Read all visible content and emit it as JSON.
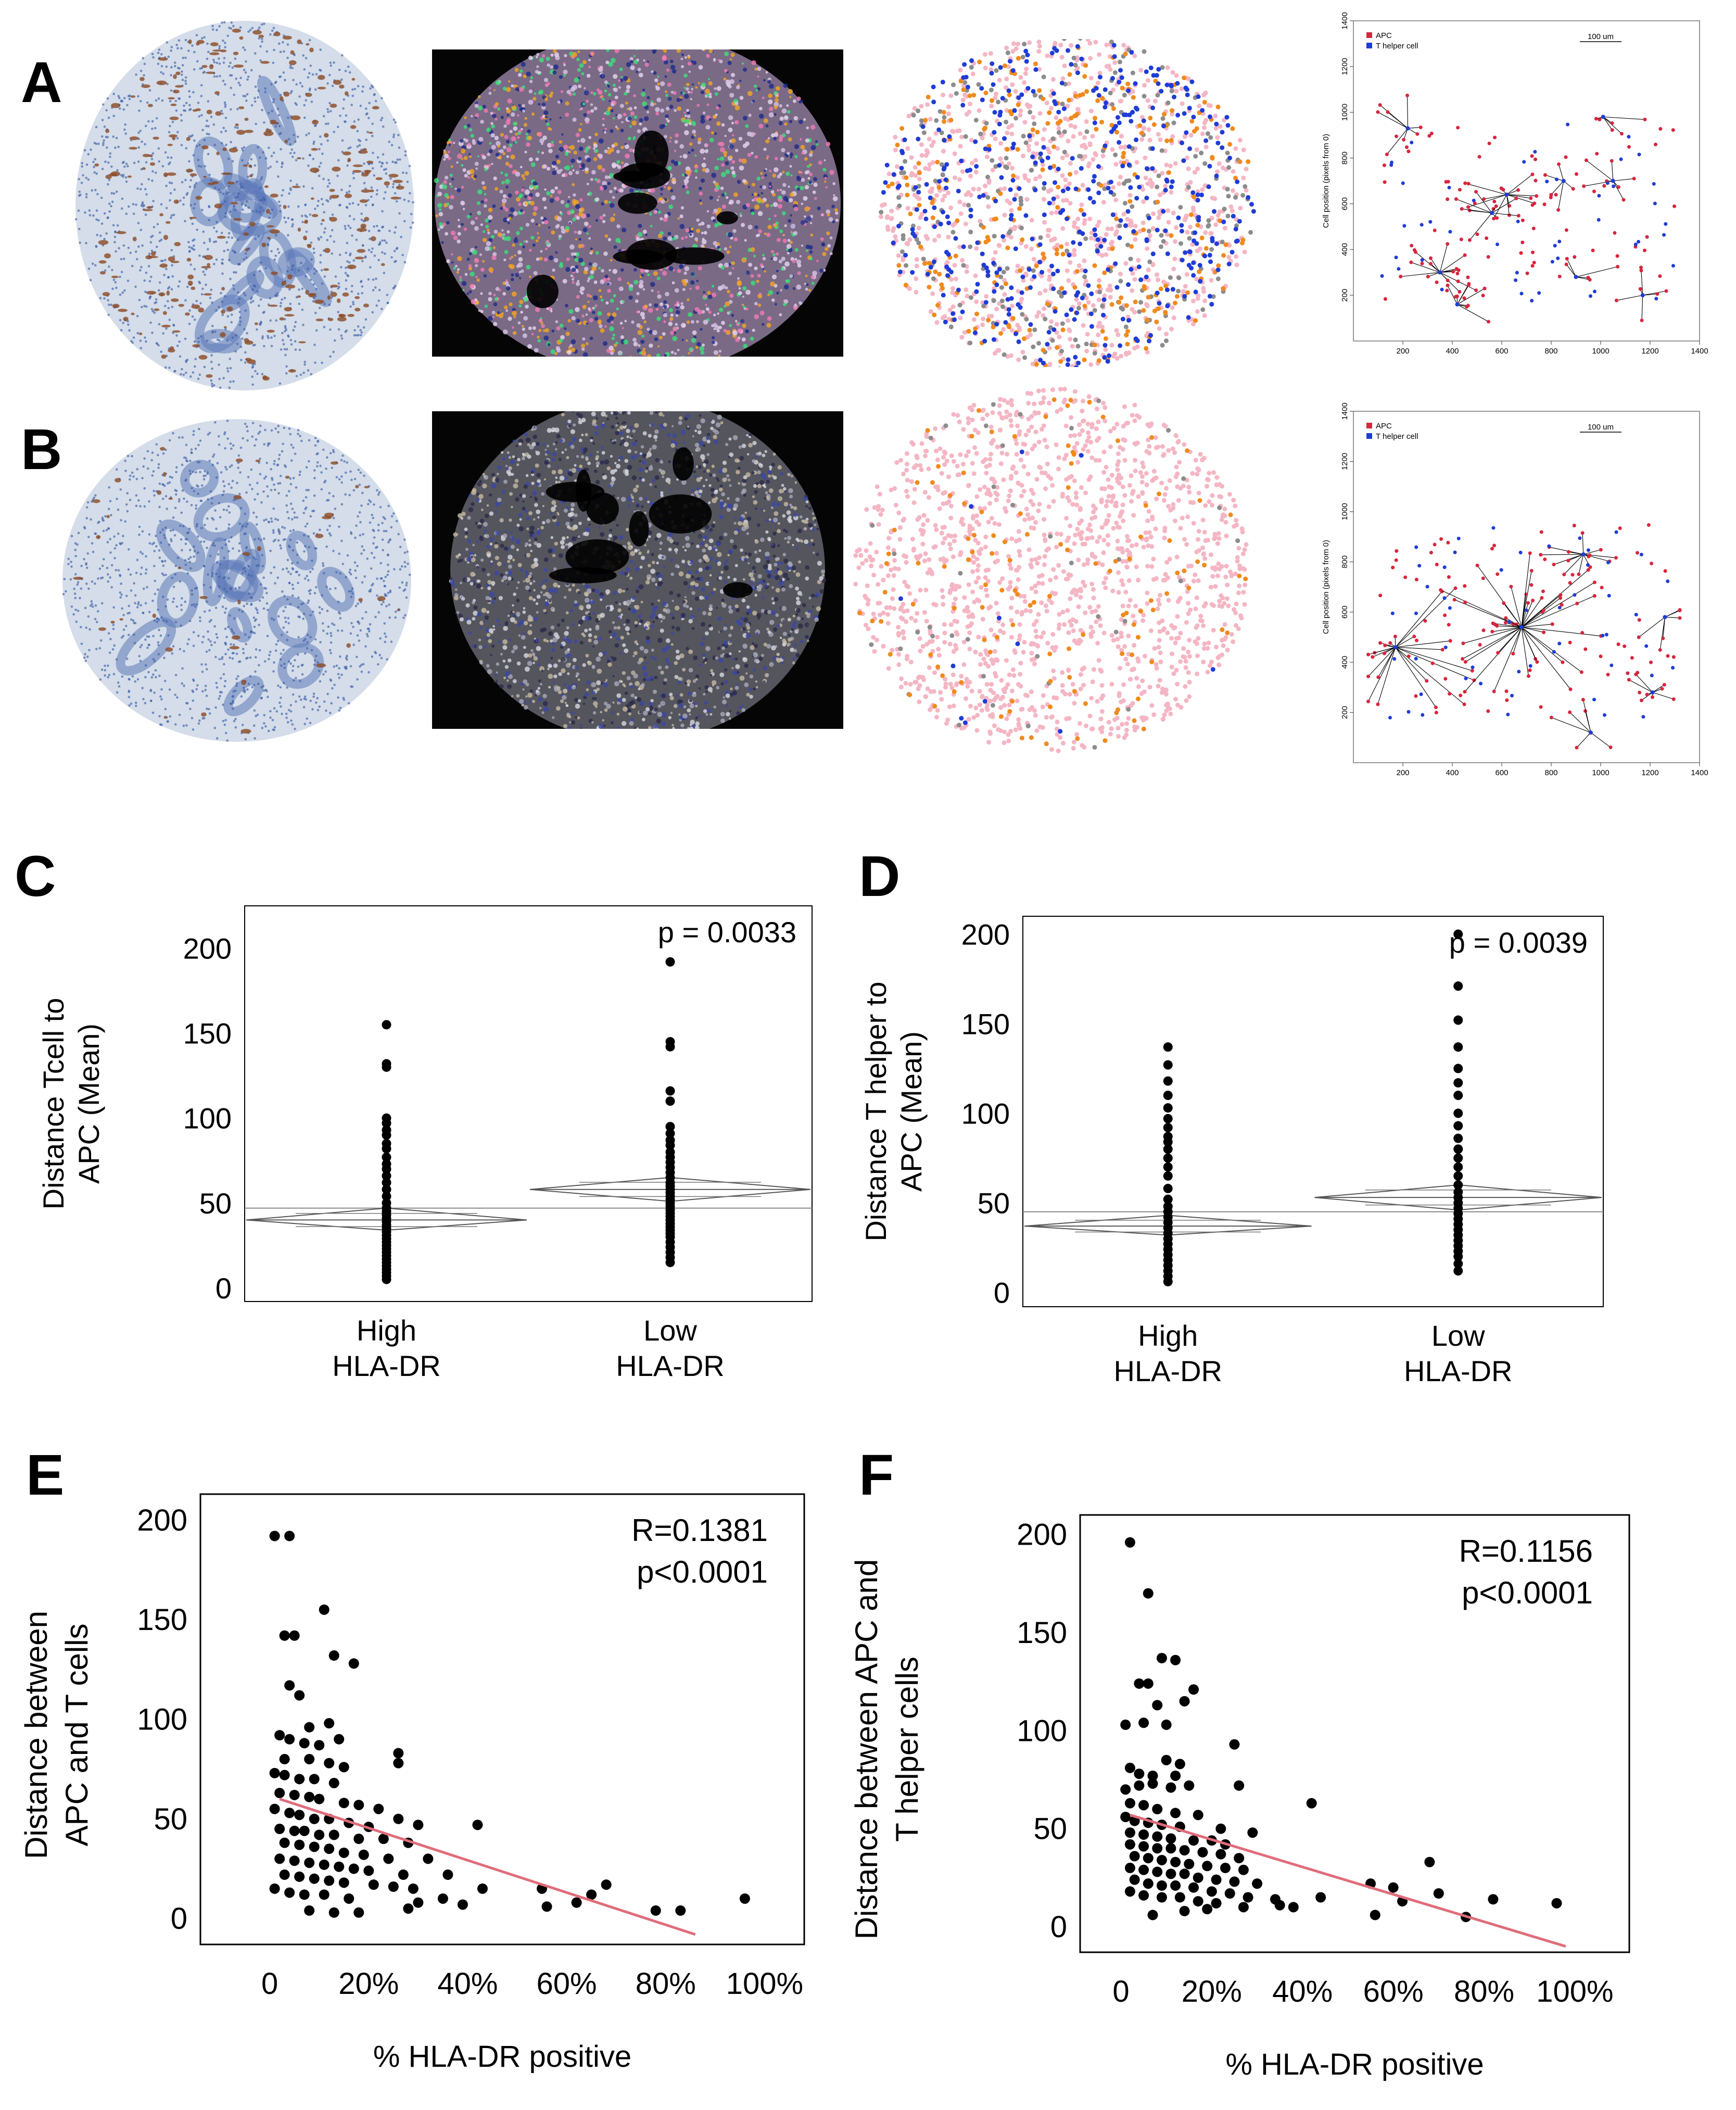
{
  "panel_letters": [
    "A",
    "B",
    "C",
    "D",
    "E",
    "F"
  ],
  "colors": {
    "ihc_background": "#d4dde9",
    "ihc_brown": "#8b4a24",
    "apc": "#d7263d",
    "t_helper": "#1f3cd6",
    "pink_cell": "#f4b6c4",
    "orange_cell": "#f08a1c",
    "gray_cell": "#8c8c8c",
    "regression_line": "#e06c7a"
  },
  "legend": {
    "apc": "APC",
    "t_helper": "T helper cell",
    "scale_bar": "100 um"
  },
  "chart_data": [
    {
      "id": "A4",
      "type": "scatter",
      "title": "",
      "xlabel": "",
      "ylabel": "Cell position (pixels from 0)",
      "xlim": [
        0,
        1400
      ],
      "ylim": [
        0,
        1400
      ],
      "xticks": [
        200,
        400,
        600,
        800,
        1000,
        1200,
        1400
      ],
      "yticks": [
        200,
        400,
        600,
        800,
        1000,
        1200,
        1400
      ],
      "hubs": [
        [
          220,
          930
        ],
        [
          1010,
          980
        ],
        [
          850,
          700
        ],
        [
          1050,
          700
        ],
        [
          620,
          640
        ],
        [
          350,
          300
        ],
        [
          560,
          560
        ],
        [
          1170,
          200
        ],
        [
          420,
          160
        ],
        [
          900,
          280
        ]
      ],
      "series": [
        {
          "name": "APC"
        },
        {
          "name": "T helper cell"
        }
      ]
    },
    {
      "id": "B4",
      "type": "scatter",
      "title": "",
      "xlabel": "",
      "ylabel": "Cell position (pixels from 0)",
      "xlim": [
        0,
        1400
      ],
      "ylim": [
        0,
        1400
      ],
      "xticks": [
        200,
        400,
        600,
        800,
        1000,
        1200,
        1400
      ],
      "yticks": [
        200,
        400,
        600,
        800,
        1000,
        1200,
        1400
      ],
      "hubs": [
        [
          170,
          460
        ],
        [
          680,
          540
        ],
        [
          930,
          830
        ],
        [
          1260,
          580
        ],
        [
          1210,
          280
        ],
        [
          960,
          120
        ]
      ],
      "series": [
        {
          "name": "APC"
        },
        {
          "name": "T helper cell"
        }
      ]
    },
    {
      "id": "C",
      "type": "scatter",
      "title": "",
      "xlabel": "",
      "ylabel": "Distance Tcell to APC (Mean)",
      "ylabel_lines": [
        "Distance Tcell to",
        "APC (Mean)"
      ],
      "ylim": [
        -8,
        225
      ],
      "yticks": [
        0,
        50,
        100,
        150,
        200
      ],
      "categories": [
        [
          "High",
          "HLA-DR"
        ],
        [
          "Low",
          "HLA-DR"
        ]
      ],
      "annotation": "p = 0.0033",
      "grand_mean": 47,
      "groups": [
        {
          "name": "High HLA-DR",
          "mean": 40,
          "ci": [
            34,
            47
          ],
          "values": [
            155,
            132,
            130,
            100,
            97,
            93,
            90,
            85,
            82,
            77,
            73,
            70,
            66,
            62,
            58,
            54,
            50,
            47,
            45,
            43,
            41,
            39,
            37,
            35,
            33,
            31,
            29,
            27,
            25,
            23,
            21,
            19,
            17,
            15,
            13,
            11,
            9,
            7,
            5
          ]
        },
        {
          "name": "Low HLA-DR",
          "mean": 58,
          "ci": [
            51,
            65
          ],
          "values": [
            192,
            145,
            142,
            116,
            110,
            95,
            91,
            87,
            84,
            80,
            77,
            74,
            71,
            68,
            65,
            62,
            60,
            58,
            56,
            54,
            52,
            50,
            48,
            46,
            44,
            42,
            40,
            38,
            36,
            34,
            32,
            30,
            27,
            24,
            21,
            18,
            15
          ]
        }
      ]
    },
    {
      "id": "D",
      "type": "scatter",
      "title": "",
      "xlabel": "",
      "ylabel": "Distance T helper to APC (Mean)",
      "ylabel_lines": [
        "Distance T helper to",
        "APC (Mean)"
      ],
      "ylim": [
        -8,
        210
      ],
      "yticks": [
        0,
        50,
        100,
        150,
        200
      ],
      "categories": [
        [
          "High",
          "HLA-DR"
        ],
        [
          "Low",
          "HLA-DR"
        ]
      ],
      "annotation": "p = 0.0039",
      "grand_mean": 45,
      "groups": [
        {
          "name": "High HLA-DR",
          "mean": 37,
          "ci": [
            32,
            43
          ],
          "values": [
            137,
            127,
            118,
            110,
            103,
            97,
            92,
            87,
            84,
            80,
            75,
            70,
            65,
            58,
            52,
            48,
            45,
            42,
            39,
            36,
            33,
            30,
            27,
            24,
            21,
            18,
            15,
            12,
            9,
            6
          ]
        },
        {
          "name": "Low HLA-DR",
          "mean": 53,
          "ci": [
            46,
            60
          ],
          "values": [
            200,
            171,
            152,
            137,
            125,
            117,
            110,
            100,
            93,
            86,
            80,
            75,
            70,
            65,
            60,
            56,
            53,
            50,
            47,
            44,
            41,
            38,
            35,
            32,
            29,
            26,
            23,
            20,
            16,
            12
          ]
        }
      ]
    },
    {
      "id": "E",
      "type": "scatter",
      "title": "",
      "xlabel": "% HLA-DR positive",
      "ylabel": "Distance between APC and T cells",
      "ylabel_lines": [
        "Distance between",
        "APC and T cells"
      ],
      "xlim": [
        -14,
        108
      ],
      "ylim": [
        -13,
        213
      ],
      "xticks": [
        0,
        20,
        40,
        60,
        80,
        100
      ],
      "xtick_labels": [
        "0",
        "20%",
        "40%",
        "60%",
        "80%",
        "100%"
      ],
      "yticks": [
        0,
        50,
        100,
        150,
        200
      ],
      "annotation": [
        "R=0.1381",
        "p<0.0001"
      ],
      "fit": {
        "x": [
          2,
          86
        ],
        "y": [
          60,
          -8
        ]
      },
      "points": [
        [
          1,
          192
        ],
        [
          4,
          192
        ],
        [
          3,
          142
        ],
        [
          5,
          142
        ],
        [
          11,
          155
        ],
        [
          13,
          132
        ],
        [
          17,
          128
        ],
        [
          4,
          117
        ],
        [
          6,
          112
        ],
        [
          8,
          96
        ],
        [
          12,
          98
        ],
        [
          2,
          92
        ],
        [
          4,
          90
        ],
        [
          7,
          88
        ],
        [
          10,
          87
        ],
        [
          14,
          90
        ],
        [
          3,
          80
        ],
        [
          8,
          80
        ],
        [
          12,
          78
        ],
        [
          15,
          76
        ],
        [
          26,
          83
        ],
        [
          26,
          78
        ],
        [
          1,
          73
        ],
        [
          3,
          72
        ],
        [
          6,
          70
        ],
        [
          9,
          70
        ],
        [
          13,
          68
        ],
        [
          2,
          63
        ],
        [
          5,
          62
        ],
        [
          8,
          61
        ],
        [
          10,
          60
        ],
        [
          15,
          58
        ],
        [
          18,
          57
        ],
        [
          22,
          55
        ],
        [
          1,
          55
        ],
        [
          4,
          53
        ],
        [
          6,
          52
        ],
        [
          9,
          50
        ],
        [
          12,
          50
        ],
        [
          16,
          48
        ],
        [
          20,
          46
        ],
        [
          26,
          50
        ],
        [
          30,
          47
        ],
        [
          42,
          47
        ],
        [
          2,
          45
        ],
        [
          5,
          44
        ],
        [
          7,
          44
        ],
        [
          10,
          42
        ],
        [
          13,
          42
        ],
        [
          18,
          40
        ],
        [
          23,
          40
        ],
        [
          28,
          38
        ],
        [
          3,
          38
        ],
        [
          6,
          37
        ],
        [
          9,
          36
        ],
        [
          12,
          35
        ],
        [
          15,
          33
        ],
        [
          19,
          32
        ],
        [
          24,
          30
        ],
        [
          32,
          30
        ],
        [
          2,
          30
        ],
        [
          5,
          29
        ],
        [
          8,
          28
        ],
        [
          11,
          27
        ],
        [
          14,
          26
        ],
        [
          17,
          25
        ],
        [
          20,
          24
        ],
        [
          27,
          22
        ],
        [
          36,
          22
        ],
        [
          3,
          22
        ],
        [
          6,
          21
        ],
        [
          9,
          20
        ],
        [
          12,
          19
        ],
        [
          15,
          18
        ],
        [
          21,
          17
        ],
        [
          25,
          16
        ],
        [
          29,
          15
        ],
        [
          43,
          15
        ],
        [
          55,
          15
        ],
        [
          68,
          17
        ],
        [
          1,
          15
        ],
        [
          4,
          13
        ],
        [
          7,
          12
        ],
        [
          11,
          12
        ],
        [
          16,
          10
        ],
        [
          30,
          8
        ],
        [
          35,
          10
        ],
        [
          39,
          7
        ],
        [
          56,
          6
        ],
        [
          62,
          8
        ],
        [
          65,
          12
        ],
        [
          78,
          4
        ],
        [
          83,
          4
        ],
        [
          96,
          10
        ],
        [
          8,
          4
        ],
        [
          13,
          3
        ],
        [
          18,
          3
        ],
        [
          28,
          5
        ]
      ]
    },
    {
      "id": "F",
      "type": "scatter",
      "title": "",
      "xlabel": "% HLA-DR positive",
      "ylabel": "Distance between APC and T helper cells",
      "ylabel_lines": [
        "Distance between APC and",
        "T helper cells"
      ],
      "xlim": [
        -9,
        112
      ],
      "ylim": [
        -13,
        210
      ],
      "xticks": [
        0,
        20,
        40,
        60,
        80,
        100
      ],
      "xtick_labels": [
        "0",
        "20%",
        "40%",
        "60%",
        "80%",
        "100%"
      ],
      "yticks": [
        0,
        50,
        100,
        150,
        200
      ],
      "annotation": [
        "R=0.1156",
        "p<0.0001"
      ],
      "fit": {
        "x": [
          2,
          98
        ],
        "y": [
          57,
          -10
        ]
      },
      "points": [
        [
          2,
          196
        ],
        [
          6,
          170
        ],
        [
          9,
          137
        ],
        [
          12,
          136
        ],
        [
          4,
          124
        ],
        [
          6,
          124
        ],
        [
          16,
          121
        ],
        [
          8,
          113
        ],
        [
          14,
          115
        ],
        [
          1,
          103
        ],
        [
          5,
          104
        ],
        [
          10,
          103
        ],
        [
          25,
          93
        ],
        [
          10,
          85
        ],
        [
          13,
          83
        ],
        [
          2,
          81
        ],
        [
          4,
          78
        ],
        [
          7,
          77
        ],
        [
          12,
          77
        ],
        [
          1,
          70
        ],
        [
          4,
          72
        ],
        [
          7,
          73
        ],
        [
          11,
          71
        ],
        [
          15,
          72
        ],
        [
          26,
          72
        ],
        [
          42,
          63
        ],
        [
          2,
          63
        ],
        [
          5,
          62
        ],
        [
          8,
          60
        ],
        [
          12,
          58
        ],
        [
          17,
          57
        ],
        [
          1,
          56
        ],
        [
          3,
          54
        ],
        [
          6,
          53
        ],
        [
          9,
          52
        ],
        [
          13,
          51
        ],
        [
          22,
          50
        ],
        [
          29,
          48
        ],
        [
          2,
          48
        ],
        [
          5,
          47
        ],
        [
          8,
          46
        ],
        [
          11,
          45
        ],
        [
          16,
          44
        ],
        [
          20,
          44
        ],
        [
          23,
          42
        ],
        [
          2,
          42
        ],
        [
          5,
          41
        ],
        [
          8,
          40
        ],
        [
          11,
          40
        ],
        [
          14,
          39
        ],
        [
          18,
          38
        ],
        [
          22,
          37
        ],
        [
          26,
          35
        ],
        [
          3,
          36
        ],
        [
          6,
          35
        ],
        [
          9,
          34
        ],
        [
          12,
          33
        ],
        [
          15,
          32
        ],
        [
          19,
          31
        ],
        [
          23,
          30
        ],
        [
          27,
          29
        ],
        [
          2,
          30
        ],
        [
          5,
          29
        ],
        [
          8,
          28
        ],
        [
          11,
          27
        ],
        [
          14,
          27
        ],
        [
          17,
          25
        ],
        [
          21,
          24
        ],
        [
          25,
          23
        ],
        [
          30,
          22
        ],
        [
          68,
          33
        ],
        [
          3,
          24
        ],
        [
          6,
          22
        ],
        [
          9,
          21
        ],
        [
          12,
          21
        ],
        [
          16,
          20
        ],
        [
          20,
          18
        ],
        [
          24,
          17
        ],
        [
          28,
          15
        ],
        [
          34,
          14
        ],
        [
          2,
          18
        ],
        [
          5,
          16
        ],
        [
          9,
          15
        ],
        [
          13,
          15
        ],
        [
          17,
          13
        ],
        [
          21,
          12
        ],
        [
          27,
          10
        ],
        [
          35,
          11
        ],
        [
          38,
          10
        ],
        [
          55,
          22
        ],
        [
          60,
          20
        ],
        [
          62,
          13
        ],
        [
          70,
          17
        ],
        [
          76,
          5
        ],
        [
          82,
          14
        ],
        [
          96,
          12
        ],
        [
          7,
          6
        ],
        [
          14,
          8
        ],
        [
          19,
          9
        ],
        [
          56,
          6
        ],
        [
          44,
          15
        ]
      ]
    }
  ]
}
